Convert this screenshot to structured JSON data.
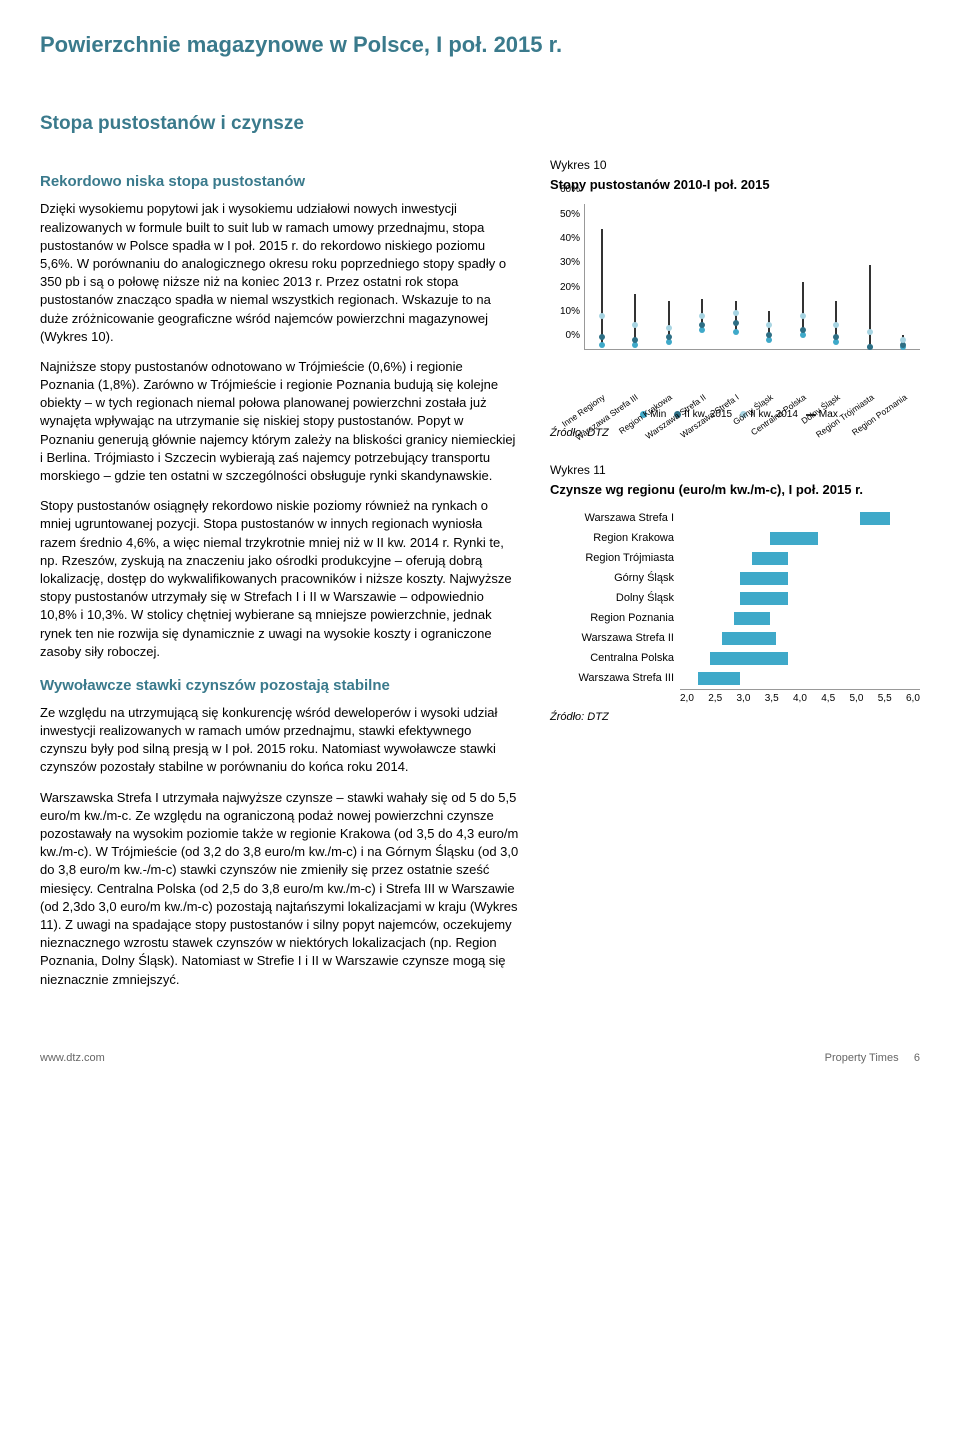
{
  "page_title": "Powierzchnie magazynowe w Polsce, I poł. 2015 r.",
  "section_title": "Stopa pustostanów i czynsze",
  "sub1": "Rekordowo niska stopa pustostanów",
  "p1": "Dzięki wysokiemu popytowi jak i wysokiemu udziałowi nowych inwestycji realizowanych w formule built to suit lub w ramach umowy przednajmu, stopa pustostanów w Polsce spadła w I poł. 2015 r. do rekordowo niskiego poziomu 5,6%. W porównaniu do analogicznego okresu roku poprzedniego stopy spadły o 350 pb i są o połowę niższe niż na koniec 2013 r. Przez ostatni rok stopa pustostanów znacząco spadła w niemal wszystkich regionach. Wskazuje to na duże zróżnicowanie geograficzne wśród najemców powierzchni magazynowej (Wykres 10).",
  "p2": "Najniższe stopy pustostanów odnotowano w Trójmieście (0,6%) i regionie Poznania (1,8%). Zarówno w Trójmieście i regionie Poznania budują się kolejne obiekty – w tych regionach niemal połowa planowanej powierzchni została już wynajęta wpływając na utrzymanie się niskiej stopy pustostanów. Popyt w Poznaniu generują głównie najemcy którym zależy na bliskości granicy niemieckiej i Berlina. Trójmiasto i Szczecin wybierają zaś najemcy potrzebujący transportu morskiego – gdzie ten ostatni w szczególności obsługuje rynki skandynawskie.",
  "p3": "Stopy pustostanów osiągnęły rekordowo niskie poziomy również na rynkach o mniej ugruntowanej pozycji. Stopa pustostanów w innych regionach wyniosła razem średnio 4,6%, a więc niemal trzykrotnie mniej niż w II kw. 2014 r. Rynki te, np. Rzeszów, zyskują na znaczeniu jako ośrodki produkcyjne – oferują dobrą lokalizację, dostęp do wykwalifikowanych pracowników i niższe koszty. Najwyższe stopy pustostanów utrzymały się w Strefach I i II w Warszawie – odpowiednio 10,8% i 10,3%. W stolicy chętniej wybierane są mniejsze powierzchnie, jednak rynek ten nie rozwija się dynamicznie z uwagi na wysokie koszty i ograniczone zasoby siły roboczej.",
  "sub2": "Wywoławcze stawki czynszów pozostają stabilne",
  "p4": "Ze względu na utrzymującą się konkurencję wśród deweloperów i wysoki udział inwestycji realizowanych w ramach umów przednajmu, stawki efektywnego czynszu były pod silną presją w I poł. 2015 roku.  Natomiast  wywoławcze stawki czynszów pozostały stabilne w porównaniu do końca roku 2014.",
  "p5": "Warszawska Strefa I utrzymała najwyższe czynsze – stawki wahały się od 5 do 5,5 euro/m kw./m-c. Ze względu na ograniczoną podaż nowej powierzchni czynsze pozostawały na wysokim poziomie także w regionie Krakowa (od 3,5 do 4,3 euro/m kw./m-c). W Trójmieście (od 3,2 do 3,8 euro/m kw./m-c) i na Górnym Śląsku (od 3,0 do 3,8 euro/m kw.-/m-c) stawki czynszów nie zmieniły się przez ostatnie sześć miesięcy. Centralna Polska (od 2,5 do 3,8 euro/m kw./m-c) i Strefa III w Warszawie (od 2,3do 3,0 euro/m kw./m-c) pozostają najtańszymi lokalizacjami w kraju (Wykres 11). Z uwagi na spadające stopy pustostanów i silny popyt najemców, oczekujemy nieznacznego wzrostu stawek czynszów w niektórych lokalizacjach (np. Region Poznania, Dolny Śląsk). Natomiast w Strefie I i II w Warszawie czynsze mogą się nieznacznie zmniejszyć.",
  "chart10": {
    "label": "Wykres 10",
    "title": "Stopy pustostanów 2010-I poł. 2015",
    "y_min": 0,
    "y_max": 60,
    "y_step": 10,
    "y_suffix": "%",
    "categories": [
      "Inne Regiony",
      "Warszawa Strefa III",
      "Region Krakowa",
      "Warszawa Strefa II",
      "Warszawa Strefa I",
      "Górny Śląsk",
      "Centralna Polska",
      "Dolny Śląsk",
      "Region Trójmiasta",
      "Region Poznania"
    ],
    "series": [
      {
        "name": "Min",
        "color": "#3fa9c9",
        "type": "dot",
        "values": [
          2,
          2,
          3,
          8,
          7,
          4,
          6,
          3,
          1,
          1
        ]
      },
      {
        "name": "II kw. 2015",
        "color": "#2e6f85",
        "type": "dot",
        "values": [
          5,
          4,
          5,
          10,
          11,
          6,
          8,
          5,
          1,
          2
        ]
      },
      {
        "name": "II kw. 2014",
        "color": "#a7d4e2",
        "type": "dot",
        "values": [
          14,
          10,
          9,
          14,
          15,
          10,
          14,
          10,
          7,
          4
        ]
      },
      {
        "name": "Max",
        "color": "#333333",
        "type": "range",
        "low": [
          2,
          2,
          3,
          8,
          7,
          4,
          6,
          3,
          1,
          1
        ],
        "high": [
          50,
          23,
          20,
          21,
          20,
          16,
          28,
          20,
          35,
          6
        ]
      }
    ],
    "legend_items": [
      {
        "label": "Min",
        "color": "#3fa9c9",
        "shape": "dot"
      },
      {
        "label": "II kw. 2015",
        "color": "#2e6f85",
        "shape": "dot"
      },
      {
        "label": "II kw. 2014",
        "color": "#a7d4e2",
        "shape": "dot"
      },
      {
        "label": "Max",
        "color": "#333333",
        "shape": "dash"
      }
    ],
    "source": "Źródło: DTZ"
  },
  "chart11": {
    "label": "Wykres 11",
    "title": "Czynsze wg regionu (euro/m kw./m-c), I poł. 2015 r.",
    "x_min": 2.0,
    "x_max": 6.0,
    "x_step": 0.5,
    "bar_color": "#3fa9c9",
    "rows": [
      {
        "label": "Warszawa Strefa I",
        "low": 5.0,
        "high": 5.5
      },
      {
        "label": "Region Krakowa",
        "low": 3.5,
        "high": 4.3
      },
      {
        "label": "Region Trójmiasta",
        "low": 3.2,
        "high": 3.8
      },
      {
        "label": "Górny Śląsk",
        "low": 3.0,
        "high": 3.8
      },
      {
        "label": "Dolny Śląsk",
        "low": 3.0,
        "high": 3.8
      },
      {
        "label": "Region Poznania",
        "low": 2.9,
        "high": 3.5
      },
      {
        "label": "Warszawa Strefa II",
        "low": 2.7,
        "high": 3.6
      },
      {
        "label": "Centralna Polska",
        "low": 2.5,
        "high": 3.8
      },
      {
        "label": "Warszawa Strefa III",
        "low": 2.3,
        "high": 3.0
      }
    ],
    "source": "Źródło: DTZ"
  },
  "footer": {
    "left": "www.dtz.com",
    "right_label": "Property Times",
    "right_page": "6"
  }
}
